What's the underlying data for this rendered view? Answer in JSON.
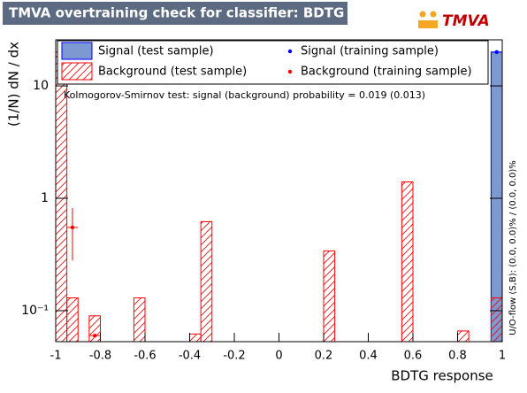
{
  "chart_data": {
    "type": "histogram",
    "title": "TMVA overtraining check for classifier: BDTG",
    "logo": "TMVA",
    "xlabel": "BDTG response",
    "ylabel": "(1/N) dN / dx",
    "annotation": "Kolmogorov-Smirnov test: signal (background) probability = 0.019 (0.013)",
    "side_note": "U/O-flow (S,B): (0.0, 0.0)% / (0.0, 0.0)%",
    "log_y": true,
    "xlim": [
      -1,
      1
    ],
    "ylim": [
      0.053,
      25.7
    ],
    "xticks": [
      -1,
      -0.8,
      -0.6,
      -0.4,
      -0.2,
      0,
      0.2,
      0.4,
      0.6,
      0.8,
      1
    ],
    "yticks": [
      {
        "value": 0.1,
        "label": "10⁻¹"
      },
      1,
      10
    ],
    "bins": [
      -1,
      -0.95,
      -0.9,
      -0.85,
      -0.8,
      -0.75,
      -0.7,
      -0.65,
      -0.6,
      -0.55,
      -0.5,
      -0.45,
      -0.4,
      -0.35,
      -0.3,
      -0.25,
      -0.2,
      -0.15,
      -0.1,
      -0.05,
      0,
      0.05,
      0.1,
      0.15,
      0.2,
      0.25,
      0.3,
      0.35,
      0.4,
      0.45,
      0.5,
      0.55,
      0.6,
      0.65,
      0.7,
      0.75,
      0.8,
      0.85,
      0.9,
      0.95,
      1
    ],
    "series": [
      {
        "name": "Signal (test sample)",
        "color": "#0000ff",
        "fill": "#7d99d1",
        "style": "filled",
        "values": [
          0,
          0,
          0,
          0,
          0,
          0,
          0,
          0,
          0,
          0,
          0,
          0,
          0,
          0,
          0,
          0,
          0,
          0,
          0,
          0,
          0,
          0,
          0,
          0,
          0,
          0,
          0,
          0,
          0,
          0,
          0,
          0,
          0,
          0,
          0,
          0,
          0,
          0,
          0,
          20
        ]
      },
      {
        "name": "Background (test sample)",
        "color": "#ff0000",
        "style": "hatched",
        "values": [
          20,
          0.13,
          0,
          0.09,
          0,
          0,
          0,
          0.13,
          0,
          0,
          0,
          0,
          0.062,
          0.62,
          0,
          0,
          0,
          0,
          0,
          0,
          0,
          0,
          0,
          0,
          0.34,
          0,
          0,
          0,
          0,
          0,
          0,
          1.4,
          0,
          0,
          0,
          0,
          0.066,
          0,
          0,
          0.13
        ]
      }
    ],
    "points": [
      {
        "name": "Signal (training sample)",
        "color": "#0000ff",
        "x": [
          0.975
        ],
        "values": [
          20
        ],
        "errors": [
          0
        ]
      },
      {
        "name": "Background (training sample)",
        "color": "#ff0000",
        "x": [
          -0.975,
          -0.925,
          -0.825
        ],
        "values": [
          20,
          0.55,
          0.06
        ],
        "errors": [
          2,
          0.27,
          0
        ]
      }
    ]
  }
}
